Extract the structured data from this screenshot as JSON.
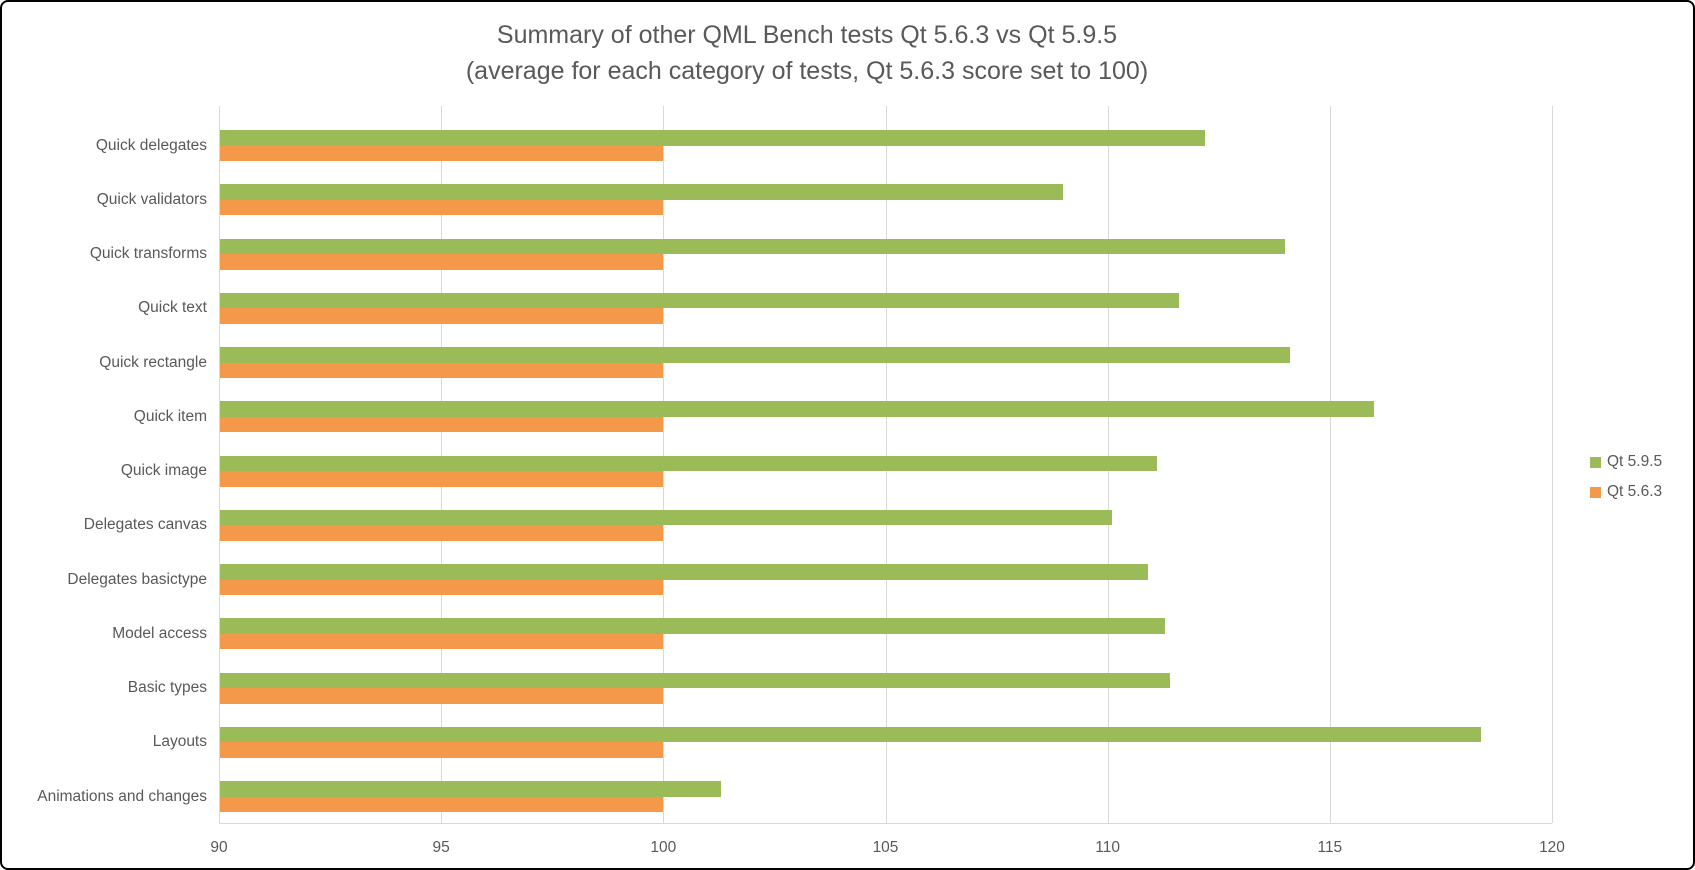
{
  "title": {
    "line1": "Summary of other QML  Bench tests Qt 5.6.3 vs Qt 5.9.5",
    "line2": "(average for each category of tests, Qt 5.6.3 score set to 100)"
  },
  "legend": {
    "items": [
      {
        "label": "Qt 5.9.5",
        "color": "#9BBB59"
      },
      {
        "label": "Qt 5.6.3",
        "color": "#F49949"
      }
    ],
    "position": "right"
  },
  "chart_data": {
    "type": "bar",
    "orientation": "horizontal",
    "title": "Summary of other QML  Bench tests Qt 5.6.3 vs Qt 5.9.5",
    "subtitle": "(average for each category of tests, Qt 5.6.3 score set to 100)",
    "categories": [
      "Quick delegates",
      "Quick validators",
      "Quick transforms",
      "Quick text",
      "Quick rectangle",
      "Quick item",
      "Quick image",
      "Delegates canvas",
      "Delegates basictype",
      "Model access",
      "Basic types",
      "Layouts",
      "Animations and changes"
    ],
    "series": [
      {
        "name": "Qt 5.9.5",
        "color": "#9BBB59",
        "values": [
          112.2,
          109.0,
          114.0,
          111.6,
          114.1,
          116.0,
          111.1,
          110.1,
          110.9,
          111.3,
          111.4,
          118.4,
          101.3
        ]
      },
      {
        "name": "Qt 5.6.3",
        "color": "#F49949",
        "values": [
          100,
          100,
          100,
          100,
          100,
          100,
          100,
          100,
          100,
          100,
          100,
          100,
          100
        ]
      }
    ],
    "xlim": [
      90,
      120
    ],
    "xticks": [
      "90",
      "95",
      "100",
      "105",
      "110",
      "115",
      "120"
    ],
    "grid": "vertical",
    "legend_position": "right",
    "bar_stack_order": "Qt 5.9.5 drawn above Qt 5.6.3 within each category"
  },
  "colors": {
    "text": "#595959",
    "gridline": "#D9D9D9",
    "background": "#FFFFFF",
    "frame_border": "#000000"
  }
}
